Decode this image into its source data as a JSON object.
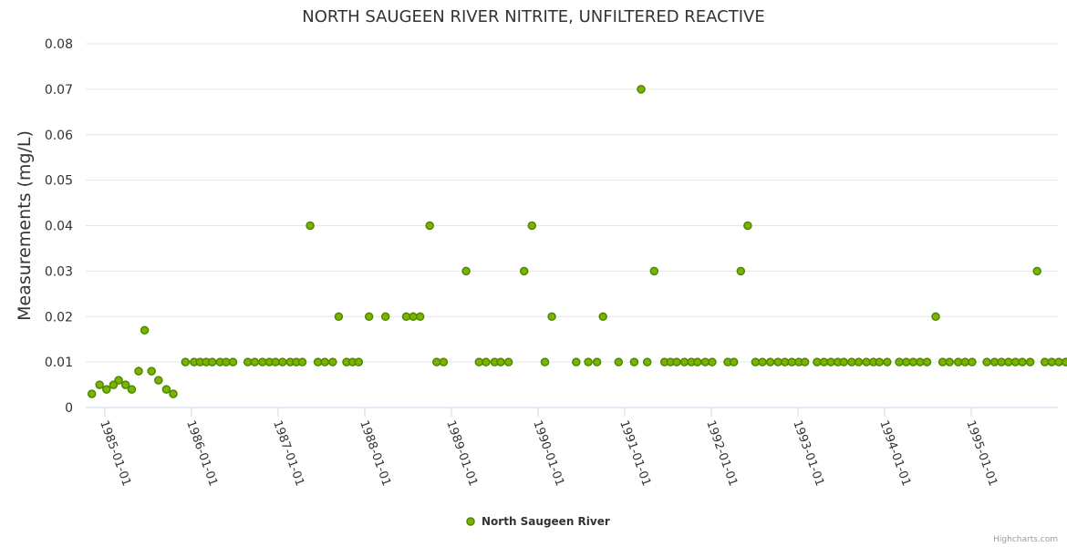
{
  "colors": {
    "point_fill": "#7cb200",
    "point_stroke": "#4a8a00"
  },
  "credits": "Highcharts.com",
  "chart_data": {
    "type": "scatter",
    "title": "NORTH SAUGEEN RIVER NITRITE, UNFILTERED REACTIVE",
    "xlabel": "",
    "ylabel": "Measurements (mg/L)",
    "ylim": [
      0,
      0.08
    ],
    "yticks": [
      0,
      0.01,
      0.02,
      0.03,
      0.04,
      0.05,
      0.06,
      0.07,
      0.08
    ],
    "ytick_labels": [
      "0",
      "0.01",
      "0.02",
      "0.03",
      "0.04",
      "0.05",
      "0.06",
      "0.07",
      "0.08"
    ],
    "xlim": [
      1984.78,
      1996.0
    ],
    "xticks": [
      1985,
      1986,
      1987,
      1988,
      1989,
      1990,
      1991,
      1992,
      1993,
      1994,
      1995
    ],
    "xtick_labels": [
      "1985-01-01",
      "1986-01-01",
      "1987-01-01",
      "1988-01-01",
      "1989-01-01",
      "1990-01-01",
      "1991-01-01",
      "1992-01-01",
      "1993-01-01",
      "1994-01-01",
      "1995-01-01"
    ],
    "legend": [
      "North Saugeen River"
    ],
    "series": [
      {
        "name": "North Saugeen River",
        "points": [
          [
            1984.85,
            0.003
          ],
          [
            1984.94,
            0.005
          ],
          [
            1985.02,
            0.004
          ],
          [
            1985.1,
            0.005
          ],
          [
            1985.16,
            0.006
          ],
          [
            1985.24,
            0.005
          ],
          [
            1985.31,
            0.004
          ],
          [
            1985.39,
            0.008
          ],
          [
            1985.46,
            0.017
          ],
          [
            1985.54,
            0.008
          ],
          [
            1985.62,
            0.006
          ],
          [
            1985.71,
            0.004
          ],
          [
            1985.79,
            0.003
          ],
          [
            1985.93,
            0.01
          ],
          [
            1986.03,
            0.01
          ],
          [
            1986.1,
            0.01
          ],
          [
            1986.17,
            0.01
          ],
          [
            1986.24,
            0.01
          ],
          [
            1986.33,
            0.01
          ],
          [
            1986.4,
            0.01
          ],
          [
            1986.48,
            0.01
          ],
          [
            1986.65,
            0.01
          ],
          [
            1986.73,
            0.01
          ],
          [
            1986.82,
            0.01
          ],
          [
            1986.9,
            0.01
          ],
          [
            1986.97,
            0.01
          ],
          [
            1987.05,
            0.01
          ],
          [
            1987.14,
            0.01
          ],
          [
            1987.21,
            0.01
          ],
          [
            1987.28,
            0.01
          ],
          [
            1987.37,
            0.04
          ],
          [
            1987.46,
            0.01
          ],
          [
            1987.54,
            0.01
          ],
          [
            1987.63,
            0.01
          ],
          [
            1987.7,
            0.02
          ],
          [
            1987.79,
            0.01
          ],
          [
            1987.86,
            0.01
          ],
          [
            1987.93,
            0.01
          ],
          [
            1988.05,
            0.02
          ],
          [
            1988.24,
            0.02
          ],
          [
            1988.48,
            0.02
          ],
          [
            1988.56,
            0.02
          ],
          [
            1988.64,
            0.02
          ],
          [
            1988.75,
            0.04
          ],
          [
            1988.83,
            0.01
          ],
          [
            1988.91,
            0.01
          ],
          [
            1989.17,
            0.03
          ],
          [
            1989.32,
            0.01
          ],
          [
            1989.4,
            0.01
          ],
          [
            1989.5,
            0.01
          ],
          [
            1989.57,
            0.01
          ],
          [
            1989.66,
            0.01
          ],
          [
            1989.84,
            0.03
          ],
          [
            1989.93,
            0.04
          ],
          [
            1990.08,
            0.01
          ],
          [
            1990.16,
            0.02
          ],
          [
            1990.44,
            0.01
          ],
          [
            1990.58,
            0.01
          ],
          [
            1990.68,
            0.01
          ],
          [
            1990.75,
            0.02
          ],
          [
            1990.93,
            0.01
          ],
          [
            1991.11,
            0.01
          ],
          [
            1991.19,
            0.07
          ],
          [
            1991.26,
            0.01
          ],
          [
            1991.34,
            0.03
          ],
          [
            1991.46,
            0.01
          ],
          [
            1991.53,
            0.01
          ],
          [
            1991.6,
            0.01
          ],
          [
            1991.69,
            0.01
          ],
          [
            1991.77,
            0.01
          ],
          [
            1991.84,
            0.01
          ],
          [
            1991.93,
            0.01
          ],
          [
            1992.01,
            0.01
          ],
          [
            1992.19,
            0.01
          ],
          [
            1992.26,
            0.01
          ],
          [
            1992.34,
            0.03
          ],
          [
            1992.42,
            0.04
          ],
          [
            1992.51,
            0.01
          ],
          [
            1992.59,
            0.01
          ],
          [
            1992.68,
            0.01
          ],
          [
            1992.77,
            0.01
          ],
          [
            1992.85,
            0.01
          ],
          [
            1992.93,
            0.01
          ],
          [
            1993.01,
            0.01
          ],
          [
            1993.08,
            0.01
          ],
          [
            1993.22,
            0.01
          ],
          [
            1993.3,
            0.01
          ],
          [
            1993.38,
            0.01
          ],
          [
            1993.46,
            0.01
          ],
          [
            1993.53,
            0.01
          ],
          [
            1993.62,
            0.01
          ],
          [
            1993.7,
            0.01
          ],
          [
            1993.79,
            0.01
          ],
          [
            1993.87,
            0.01
          ],
          [
            1993.94,
            0.01
          ],
          [
            1994.03,
            0.01
          ],
          [
            1994.17,
            0.01
          ],
          [
            1994.25,
            0.01
          ],
          [
            1994.33,
            0.01
          ],
          [
            1994.41,
            0.01
          ],
          [
            1994.49,
            0.01
          ],
          [
            1994.59,
            0.02
          ],
          [
            1994.67,
            0.01
          ],
          [
            1994.75,
            0.01
          ],
          [
            1994.85,
            0.01
          ],
          [
            1994.93,
            0.01
          ],
          [
            1995.01,
            0.01
          ],
          [
            1995.18,
            0.01
          ],
          [
            1995.27,
            0.01
          ],
          [
            1995.35,
            0.01
          ],
          [
            1995.43,
            0.01
          ],
          [
            1995.51,
            0.01
          ],
          [
            1995.59,
            0.01
          ],
          [
            1995.68,
            0.01
          ],
          [
            1995.76,
            0.03
          ],
          [
            1995.85,
            0.01
          ],
          [
            1995.93,
            0.01
          ],
          [
            1996.01,
            0.01
          ],
          [
            1996.09,
            0.01
          ]
        ]
      }
    ]
  }
}
